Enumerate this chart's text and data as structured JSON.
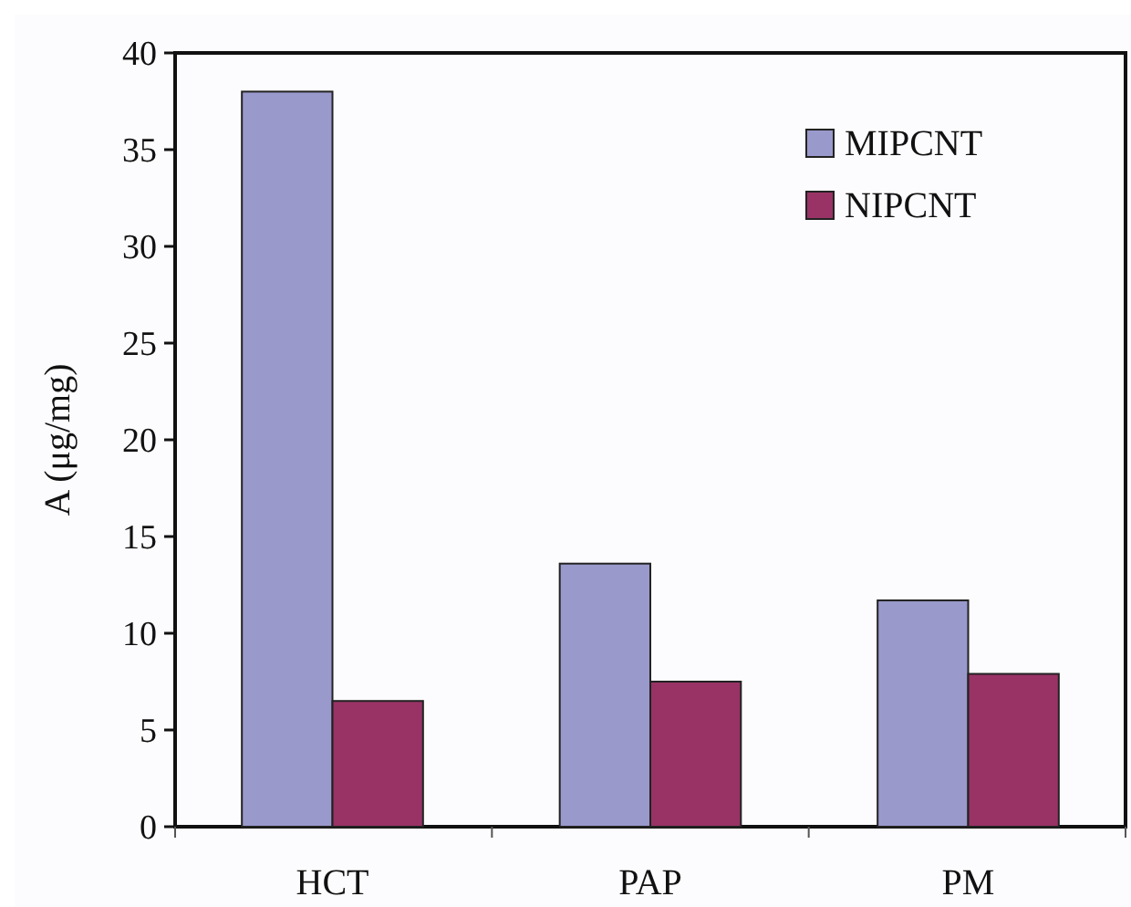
{
  "chart_data": {
    "type": "bar",
    "ylabel": "A (μg/mg)",
    "categories": [
      "HCT",
      "PAP",
      "PM"
    ],
    "series": [
      {
        "name": "MIPCNT",
        "color": "#9999cc",
        "values": [
          38,
          13.6,
          11.7
        ]
      },
      {
        "name": "NIPCNT",
        "color": "#993366",
        "values": [
          6.5,
          7.5,
          7.9
        ]
      }
    ],
    "ylim": [
      0,
      40
    ],
    "yticks": [
      0,
      5,
      10,
      15,
      20,
      25,
      30,
      35,
      40
    ],
    "grid": false,
    "legend": "top right"
  }
}
